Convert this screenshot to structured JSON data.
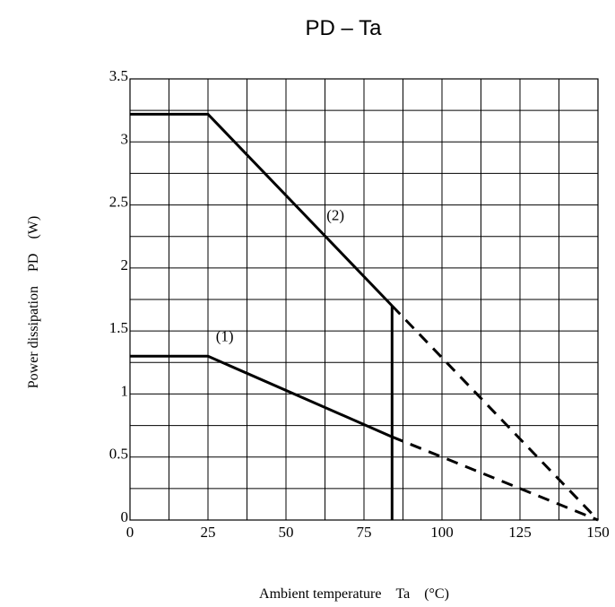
{
  "chart_data": {
    "type": "line",
    "title": "PD – Ta",
    "xlabel": "Ambient temperature　Ta　(°C)",
    "ylabel": "Power dissipation　PD　(W)",
    "xlim": [
      0,
      150
    ],
    "ylim": [
      0,
      3.5
    ],
    "x_ticks": [
      {
        "value": 0,
        "label": "0"
      },
      {
        "value": 25,
        "label": "25"
      },
      {
        "value": 50,
        "label": "50"
      },
      {
        "value": 75,
        "label": "75"
      },
      {
        "value": 100,
        "label": "100"
      },
      {
        "value": 125,
        "label": "125"
      },
      {
        "value": 150,
        "label": "150"
      }
    ],
    "y_ticks": [
      {
        "value": 0,
        "label": "0"
      },
      {
        "value": 0.5,
        "label": "0.5"
      },
      {
        "value": 1,
        "label": "1"
      },
      {
        "value": 1.5,
        "label": "1.5"
      },
      {
        "value": 2,
        "label": "2"
      },
      {
        "value": 2.5,
        "label": "2.5"
      },
      {
        "value": 3,
        "label": "3"
      },
      {
        "value": 3.5,
        "label": "3.5"
      }
    ],
    "x_grid_step": 12.5,
    "y_grid_step": 0.25,
    "grid": true,
    "series": [
      {
        "label": "(1)",
        "solid": [
          [
            0,
            1.3
          ],
          [
            25,
            1.3
          ],
          [
            84,
            0.66
          ]
        ],
        "dashed": [
          [
            84,
            0.66
          ],
          [
            100,
            0.5
          ],
          [
            150,
            0
          ]
        ],
        "label_at": [
          27.5,
          1.42
        ]
      },
      {
        "label": "(2)",
        "solid": [
          [
            0,
            3.22
          ],
          [
            25,
            3.22
          ],
          [
            84,
            1.7
          ]
        ],
        "dashed": [
          [
            84,
            1.7
          ],
          [
            150,
            0
          ]
        ],
        "label_at": [
          63,
          2.38
        ]
      }
    ],
    "vertical_line": {
      "x": 84,
      "from": 0,
      "to": 1.7
    }
  }
}
